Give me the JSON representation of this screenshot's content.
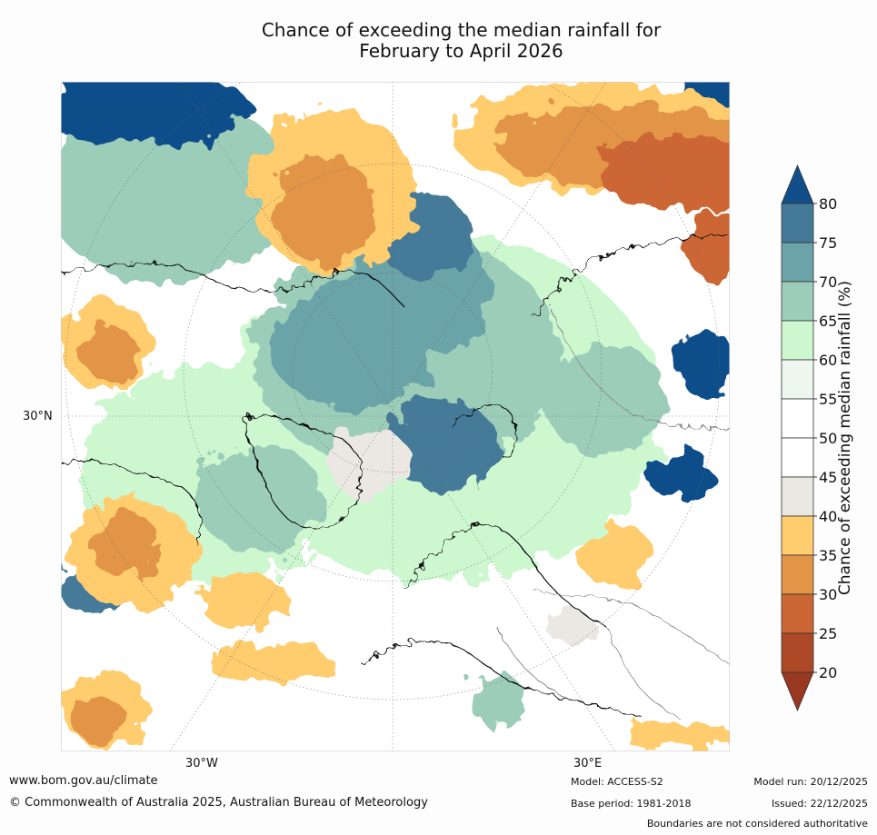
{
  "title_line1": "Chance of exceeding the median rainfall for",
  "title_line2": "February to April 2026",
  "map": {
    "lat_label": "30°N",
    "lon_labels": [
      "30°W",
      "30°E"
    ]
  },
  "colorbar": {
    "title": "Chance of exceeding median rainfall (%)",
    "ticks": [
      "80",
      "75",
      "70",
      "65",
      "60",
      "55",
      "50",
      "45",
      "40",
      "35",
      "30",
      "25",
      "20"
    ],
    "colors": [
      "#114e8a",
      "#447a98",
      "#6ba3a8",
      "#9ccdb9",
      "#ccf7cf",
      "#eef7ee",
      "#ffffff",
      "#ffffff",
      "#ebe8e4",
      "#ffcc6e",
      "#e29447",
      "#cc6634",
      "#ad4827",
      "#983820"
    ]
  },
  "footer": {
    "url": "www.bom.gov.au/climate",
    "copyright": "© Commonwealth of Australia 2025, Australian Bureau of Meteorology",
    "model": "Model: ACCESS-S2",
    "base_period": "Base period: 1981-2018",
    "model_run": "Model run: 20/12/2025",
    "issued": "Issued: 22/12/2025",
    "disclaimer": "Boundaries are not considered authoritative"
  }
}
